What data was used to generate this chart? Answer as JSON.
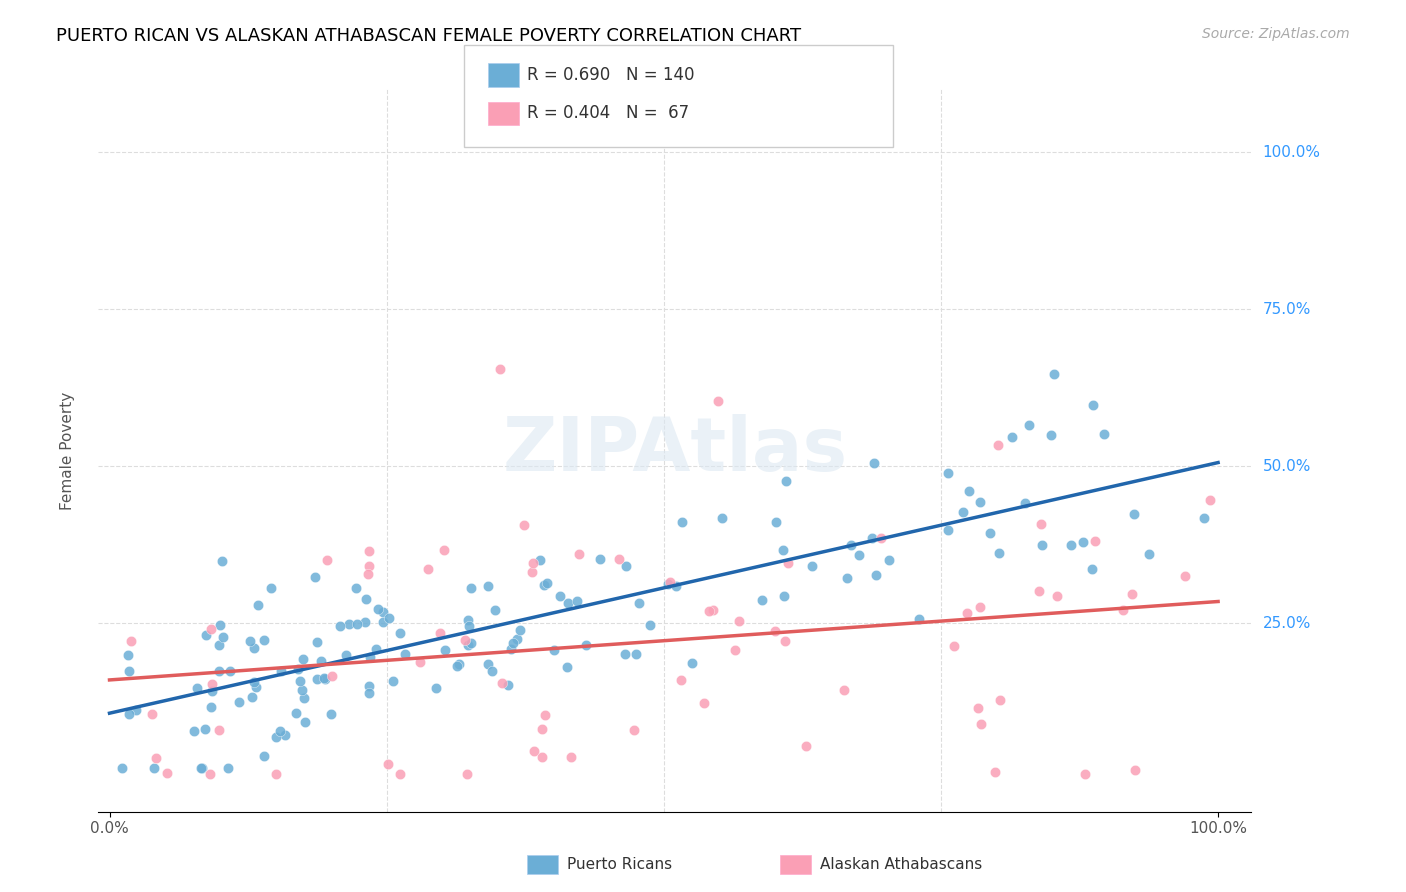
{
  "title": "PUERTO RICAN VS ALASKAN ATHABASCAN FEMALE POVERTY CORRELATION CHART",
  "source": "Source: ZipAtlas.com",
  "ylabel": "Female Poverty",
  "legend_blue_label": "Puerto Ricans",
  "legend_pink_label": "Alaskan Athabascans",
  "blue_color": "#6baed6",
  "pink_color": "#fa9fb5",
  "blue_line_color": "#2166ac",
  "pink_line_color": "#e05c5c",
  "watermark": "ZIPAtlas",
  "n_blue": 140,
  "n_pink": 67,
  "r_blue": 0.69,
  "r_pink": 0.404
}
